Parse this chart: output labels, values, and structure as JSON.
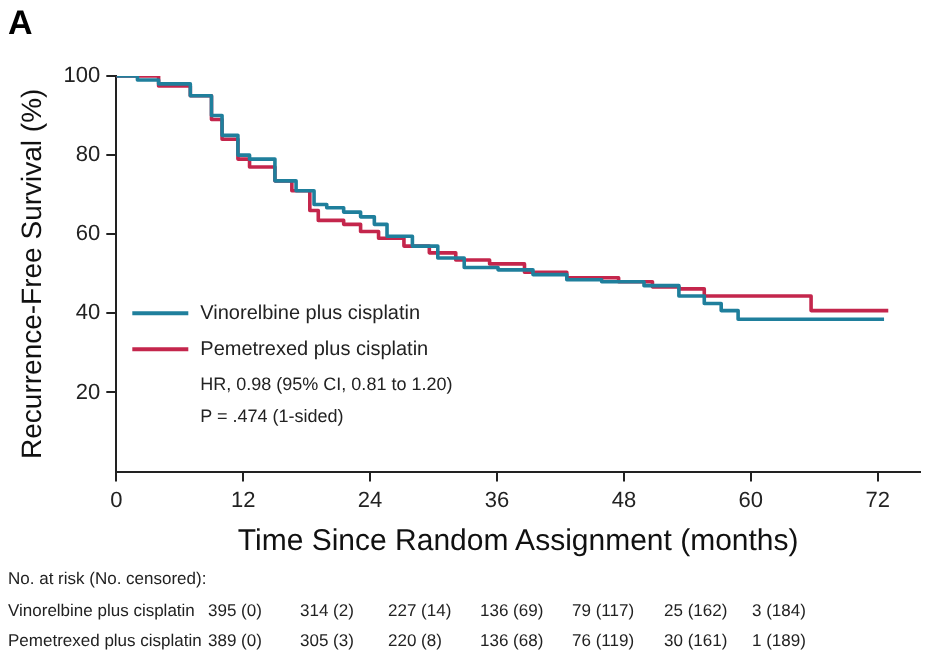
{
  "chart_data": {
    "type": "step",
    "title": "A",
    "xlabel": "Time Since Random Assignment (months)",
    "ylabel": "Recurrence-Free Survival (%)",
    "xlim": [
      0,
      76
    ],
    "xticks": [
      0,
      12,
      24,
      36,
      48,
      60,
      72
    ],
    "ylim": [
      0,
      100
    ],
    "yticks": [
      20,
      40,
      60,
      80,
      100
    ],
    "grid": false,
    "legend": "bottom left",
    "marker": "none",
    "line_style": "solid",
    "series": [
      {
        "name": "Vinorelbine plus cisplatin",
        "color": "#1f7f9c",
        "x": [
          0,
          2,
          4,
          7,
          9,
          10,
          11.5,
          12.6,
          15,
          17,
          18.7,
          19.9,
          21.5,
          23.1,
          24.4,
          25.6,
          28,
          30.4,
          32.9,
          36.1,
          39.4,
          42.6,
          45.9,
          49.9,
          53.2,
          55.6,
          57.2,
          58.8,
          72.6
        ],
        "values": [
          100,
          99,
          98,
          95,
          90,
          85,
          80,
          79,
          73.5,
          71,
          67.5,
          66.7,
          65.6,
          64.4,
          62.5,
          59.5,
          57,
          54,
          51.6,
          51,
          49.8,
          48.5,
          48,
          47,
          44.4,
          42.5,
          40.7,
          38.5,
          38.5
        ]
      },
      {
        "name": "Pemetrexed plus cisplatin",
        "color": "#c4264c",
        "x": [
          0,
          4,
          7,
          9,
          10,
          11.5,
          12.6,
          15,
          16.6,
          18.3,
          19.1,
          21.5,
          23.1,
          24.8,
          27.2,
          29.6,
          32.1,
          35.3,
          38.6,
          42.6,
          47.5,
          50.7,
          53.2,
          55.6,
          58.8,
          64.5,
          65.7,
          73
        ],
        "values": [
          100,
          97.5,
          95,
          89,
          84,
          79,
          77,
          73.5,
          71,
          66,
          63.5,
          62.5,
          60.7,
          59,
          57,
          55.3,
          53.5,
          52.5,
          50.4,
          49,
          48,
          46.7,
          46.2,
          44.4,
          44.4,
          44.4,
          40.7,
          40.7
        ]
      }
    ],
    "annotations": [
      "HR, 0.98 (95% CI, 0.81 to 1.20)",
      "P = .474 (1-sided)",
      "No. at risk (No. censored):",
      "Vinorelbine plus cisplatin",
      "395 (0)",
      "314 (2)",
      "227 (14)",
      "136 (69)",
      "79 (117)",
      "25 (162)",
      "3 (184)",
      "Pemetrexed plus cisplatin",
      "389 (0)",
      "305 (3)",
      "220 (8)",
      "136 (68)",
      "76 (119)",
      "30 (161)",
      "1 (189)"
    ]
  }
}
